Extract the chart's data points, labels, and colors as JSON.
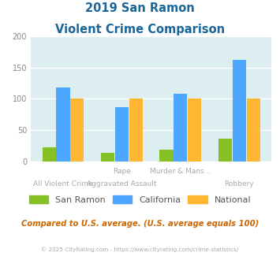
{
  "title_line1": "2019 San Ramon",
  "title_line2": "Violent Crime Comparison",
  "cat_labels_top": [
    "",
    "Rape",
    "Murder & Mans...",
    ""
  ],
  "cat_labels_bottom": [
    "All Violent Crime",
    "Aggravated Assault",
    "",
    "Robbery"
  ],
  "san_ramon": [
    22,
    13,
    19,
    36
  ],
  "california": [
    118,
    87,
    108,
    162
  ],
  "national": [
    100,
    100,
    100,
    100
  ],
  "colors": {
    "san_ramon": "#85c025",
    "california": "#4da6ff",
    "national": "#ffb733"
  },
  "ylim": [
    0,
    200
  ],
  "yticks": [
    0,
    50,
    100,
    150,
    200
  ],
  "plot_bg": "#ddeef0",
  "title_color": "#1a6699",
  "footer_text": "Compared to U.S. average. (U.S. average equals 100)",
  "footer_color": "#cc6600",
  "copyright_text": "© 2025 CityRating.com - https://www.cityrating.com/crime-statistics/",
  "copyright_color": "#aaaaaa",
  "legend_labels": [
    "San Ramon",
    "California",
    "National"
  ]
}
